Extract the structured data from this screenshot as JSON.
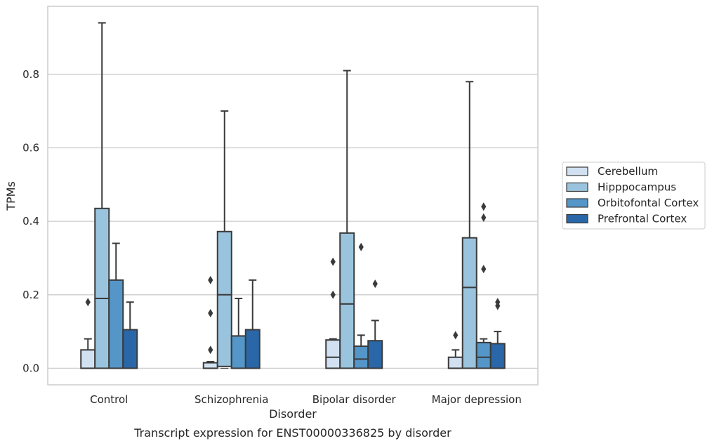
{
  "chart_data": {
    "type": "box",
    "title": "",
    "caption": "Transcript expression for ENST00000336825 by disorder",
    "xlabel": "Disorder",
    "ylabel": "TPMs",
    "ylim": [
      -0.045,
      0.985
    ],
    "yticks": [
      0.0,
      0.2,
      0.4,
      0.6,
      0.8
    ],
    "ytick_labels": [
      "0.0",
      "0.2",
      "0.4",
      "0.6",
      "0.8"
    ],
    "grid": "horizontal",
    "legend_position": "right",
    "categories": [
      "Control",
      "Schizophrenia",
      "Bipolar disorder",
      "Major depression"
    ],
    "series": [
      {
        "name": "Cerebellum",
        "color": "#d1e1f1",
        "boxes": [
          {
            "min": 0.0,
            "q1": 0.0,
            "median": 0.0,
            "q3": 0.05,
            "max": 0.08,
            "outliers": [
              0.18
            ]
          },
          {
            "min": 0.0,
            "q1": 0.0,
            "median": 0.0,
            "q3": 0.015,
            "max": 0.018,
            "outliers": [
              0.05,
              0.15,
              0.24
            ]
          },
          {
            "min": 0.0,
            "q1": 0.0,
            "median": 0.03,
            "q3": 0.077,
            "max": 0.08,
            "outliers": [
              0.2,
              0.29
            ]
          },
          {
            "min": 0.0,
            "q1": 0.0,
            "median": 0.0,
            "q3": 0.03,
            "max": 0.05,
            "outliers": [
              0.09
            ]
          }
        ]
      },
      {
        "name": "Hipppocampus",
        "color": "#9ac4dd",
        "boxes": [
          {
            "min": 0.0,
            "q1": 0.0,
            "median": 0.19,
            "q3": 0.435,
            "max": 0.94,
            "outliers": []
          },
          {
            "min": 0.0,
            "q1": 0.005,
            "median": 0.2,
            "q3": 0.372,
            "max": 0.7,
            "outliers": []
          },
          {
            "min": 0.0,
            "q1": 0.0,
            "median": 0.175,
            "q3": 0.368,
            "max": 0.81,
            "outliers": []
          },
          {
            "min": 0.0,
            "q1": 0.0,
            "median": 0.22,
            "q3": 0.355,
            "max": 0.78,
            "outliers": []
          }
        ]
      },
      {
        "name": "Orbitofontal Cortex",
        "color": "#5496c8",
        "boxes": [
          {
            "min": 0.0,
            "q1": 0.0,
            "median": 0.0,
            "q3": 0.24,
            "max": 0.34,
            "outliers": []
          },
          {
            "min": 0.0,
            "q1": 0.0,
            "median": 0.0,
            "q3": 0.088,
            "max": 0.19,
            "outliers": []
          },
          {
            "min": 0.0,
            "q1": 0.0,
            "median": 0.025,
            "q3": 0.06,
            "max": 0.09,
            "outliers": [
              0.33
            ]
          },
          {
            "min": 0.0,
            "q1": 0.0,
            "median": 0.03,
            "q3": 0.07,
            "max": 0.08,
            "outliers": [
              0.27,
              0.41,
              0.44
            ]
          }
        ]
      },
      {
        "name": "Prefrontal Cortex",
        "color": "#2a67a8",
        "boxes": [
          {
            "min": 0.0,
            "q1": 0.0,
            "median": 0.0,
            "q3": 0.105,
            "max": 0.18,
            "outliers": []
          },
          {
            "min": 0.0,
            "q1": 0.0,
            "median": 0.0,
            "q3": 0.105,
            "max": 0.24,
            "outliers": []
          },
          {
            "min": 0.0,
            "q1": 0.0,
            "median": 0.0,
            "q3": 0.075,
            "max": 0.13,
            "outliers": [
              0.23
            ]
          },
          {
            "min": 0.0,
            "q1": 0.0,
            "median": 0.0,
            "q3": 0.067,
            "max": 0.1,
            "outliers": [
              0.17,
              0.18
            ]
          }
        ]
      }
    ],
    "style": {
      "grid_color": "#cccccc",
      "frame_color": "#cccccc",
      "line_color": "#3a3a3a",
      "legend_border_color": "#cccccc"
    }
  }
}
